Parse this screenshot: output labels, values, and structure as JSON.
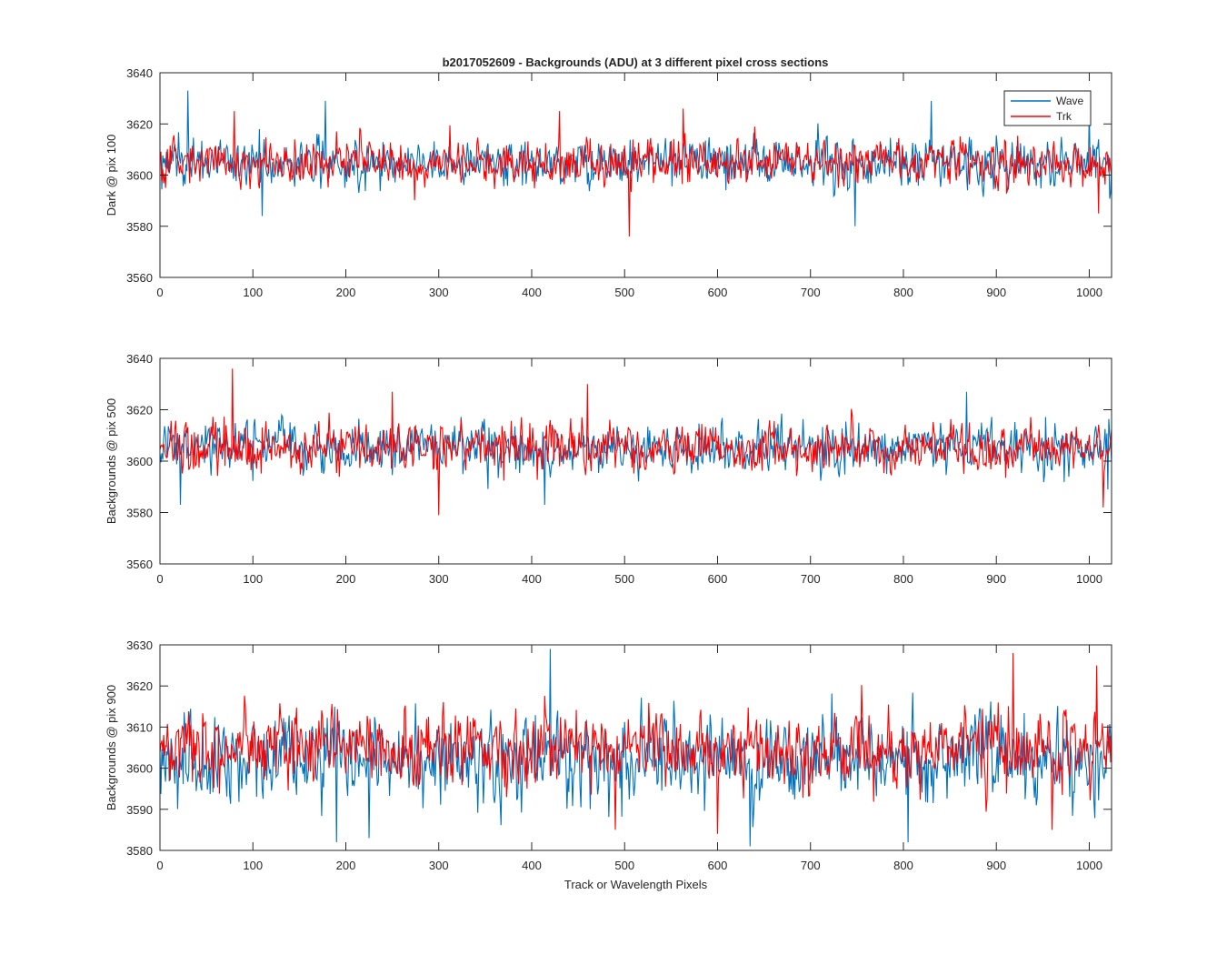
{
  "figure": {
    "title": "b2017052609 - Backgrounds (ADU) at 3 different pixel cross sections",
    "colors": {
      "wave": "#0072BD",
      "trk": "#FF0000",
      "axis": "#262626"
    }
  },
  "legend": {
    "placement": "top-right",
    "entries": [
      {
        "name": "Wave",
        "color": "#0072BD"
      },
      {
        "name": "Trk",
        "color": "#FF0000"
      }
    ]
  },
  "chart_data": [
    {
      "type": "line",
      "title": "b2017052609 - Backgrounds (ADU) at 3 different pixel cross sections",
      "xlabel": "",
      "ylabel": "Dark @ pix 100",
      "xlim": [
        0,
        1024
      ],
      "ylim": [
        3560,
        3640
      ],
      "xticks": [
        0,
        100,
        200,
        300,
        400,
        500,
        600,
        700,
        800,
        900,
        1000
      ],
      "yticks": [
        3560,
        3580,
        3600,
        3620,
        3640
      ],
      "grid": false,
      "legend": "top-right",
      "series": [
        {
          "name": "Wave",
          "color": "#0072BD",
          "mean": 3605,
          "spread": 6,
          "notable_points": [
            [
              30,
              3633
            ],
            [
              178,
              3629
            ],
            [
              748,
              3580
            ],
            [
              110,
              3584
            ],
            [
              830,
              3629
            ],
            [
              1000,
              3626
            ]
          ]
        },
        {
          "name": "Trk",
          "color": "#FF0000",
          "mean": 3605,
          "spread": 5.5,
          "notable_points": [
            [
              505,
              3576
            ],
            [
              563,
              3626
            ],
            [
              430,
              3625
            ],
            [
              80,
              3625
            ],
            [
              1010,
              3585
            ]
          ]
        }
      ]
    },
    {
      "type": "line",
      "xlabel": "",
      "ylabel": "Backgrounds @ pix 500",
      "xlim": [
        0,
        1024
      ],
      "ylim": [
        3560,
        3640
      ],
      "xticks": [
        0,
        100,
        200,
        300,
        400,
        500,
        600,
        700,
        800,
        900,
        1000
      ],
      "yticks": [
        3560,
        3580,
        3600,
        3620,
        3640
      ],
      "grid": false,
      "series": [
        {
          "name": "Wave",
          "color": "#0072BD",
          "mean": 3605,
          "spread": 6,
          "notable_points": [
            [
              22,
              3583
            ],
            [
              868,
              3627
            ],
            [
              414,
              3583
            ],
            [
              1020,
              3589
            ]
          ]
        },
        {
          "name": "Trk",
          "color": "#FF0000",
          "mean": 3605,
          "spread": 6,
          "notable_points": [
            [
              78,
              3636
            ],
            [
              300,
              3579
            ],
            [
              460,
              3630
            ],
            [
              250,
              3627
            ],
            [
              1015,
              3582
            ]
          ]
        }
      ]
    },
    {
      "type": "line",
      "xlabel": "Track or Wavelength Pixels",
      "ylabel": "Backgrounds @ pix 900",
      "xlim": [
        0,
        1024
      ],
      "ylim": [
        3580,
        3630
      ],
      "xticks": [
        0,
        100,
        200,
        300,
        400,
        500,
        600,
        700,
        800,
        900,
        1000
      ],
      "yticks": [
        3580,
        3590,
        3600,
        3610,
        3620,
        3630
      ],
      "grid": false,
      "series": [
        {
          "name": "Wave",
          "color": "#0072BD",
          "mean": 3602,
          "spread": 7,
          "notable_points": [
            [
              420,
              3629
            ],
            [
              225,
              3583
            ],
            [
              635,
              3581
            ],
            [
              805,
              3582
            ],
            [
              190,
              3582
            ]
          ]
        },
        {
          "name": "Trk",
          "color": "#FF0000",
          "mean": 3605,
          "spread": 6,
          "notable_points": [
            [
              918,
              3628
            ],
            [
              1008,
              3625
            ],
            [
              600,
              3584
            ],
            [
              960,
              3585
            ],
            [
              490,
              3585
            ]
          ]
        }
      ]
    }
  ]
}
